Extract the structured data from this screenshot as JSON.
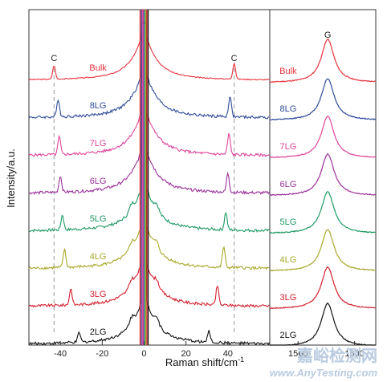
{
  "chart_data": [
    {
      "type": "line",
      "panel": "low-frequency",
      "title": "",
      "xlabel": "Raman shift/cm",
      "xlabel_superscript": "-1",
      "ylabel": "Intensity/a.u.",
      "xlim": [
        -55,
        60
      ],
      "x_ticks": [
        -40,
        -20,
        0,
        20,
        40
      ],
      "tick_labels": [
        "-40",
        "-20",
        "0",
        "20",
        "40"
      ],
      "annotations": [
        {
          "text": "C",
          "x": -43
        },
        {
          "text": "C",
          "x": 43
        }
      ],
      "series": [
        {
          "name": "Bulk",
          "color": "#e8323c",
          "c_peak": 43,
          "c_height": 20,
          "baseline": 0.8
        },
        {
          "name": "8LG",
          "color": "#2f4b9a",
          "c_peak": 41,
          "c_height": 26,
          "baseline": 1.55
        },
        {
          "name": "7LG",
          "color": "#e0459b",
          "c_peak": 40.5,
          "c_height": 26,
          "baseline": 2.3
        },
        {
          "name": "6LG",
          "color": "#9b2f9b",
          "c_peak": 40,
          "c_height": 24,
          "baseline": 2.95
        },
        {
          "name": "5LG",
          "color": "#1f9a62",
          "c_peak": 39,
          "c_height": 22,
          "baseline": 4.0
        },
        {
          "name": "4LG",
          "color": "#a8a82a",
          "c_peak": 38,
          "c_height": 26,
          "baseline": 4.75
        },
        {
          "name": "3LG",
          "color": "#d21f2d",
          "c_peak": 35,
          "c_height": 24,
          "baseline": 5.55
        },
        {
          "name": "2LG",
          "color": "#111111",
          "c_peak": 31,
          "c_height": 14,
          "baseline": 6.35
        }
      ]
    },
    {
      "type": "line",
      "panel": "G-band",
      "title": "",
      "xlim": [
        1540,
        1615
      ],
      "x_ticks": [
        1560,
        1600
      ],
      "tick_labels": [
        "1560",
        "1600"
      ],
      "annotations": [
        {
          "text": "G",
          "x": 1581
        }
      ],
      "series": [
        {
          "name": "Bulk",
          "color": "#e8323c",
          "g_peak": 1581,
          "g_height": 54
        },
        {
          "name": "8LG",
          "color": "#2f4b9a",
          "g_peak": 1581,
          "g_height": 52
        },
        {
          "name": "7LG",
          "color": "#e0459b",
          "g_peak": 1581,
          "g_height": 52
        },
        {
          "name": "6LG",
          "color": "#9b2f9b",
          "g_peak": 1581,
          "g_height": 52
        },
        {
          "name": "5LG",
          "color": "#1f9a62",
          "g_peak": 1581,
          "g_height": 52
        },
        {
          "name": "4LG",
          "color": "#a8a82a",
          "g_peak": 1581,
          "g_height": 52
        },
        {
          "name": "3LG",
          "color": "#d21f2d",
          "g_peak": 1581,
          "g_height": 52
        },
        {
          "name": "2LG",
          "color": "#111111",
          "g_peak": 1581,
          "g_height": 54
        }
      ]
    }
  ],
  "watermark": {
    "cn": "嘉峪检测网",
    "url": "www.AnyTesting.com",
    "color": "#b9cbe0"
  }
}
